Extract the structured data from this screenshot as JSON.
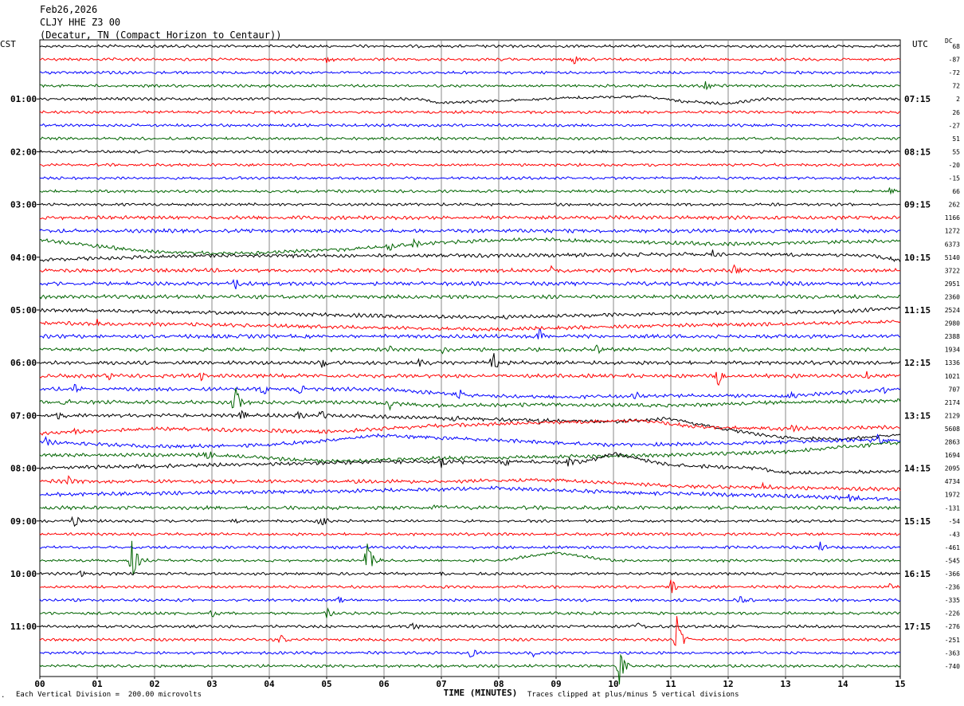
{
  "header": {
    "date": "Feb26,2026",
    "station": "CLJY HHE Z3 00",
    "location": "(Decatur, TN (Compact Horizon to Centaur))"
  },
  "axis": {
    "left_label": "CST",
    "right_label": "UTC",
    "dc_label": "DC",
    "xlabel": "TIME (MINUTES)",
    "x_ticks": [
      "00",
      "01",
      "02",
      "03",
      "04",
      "05",
      "06",
      "07",
      "08",
      "09",
      "10",
      "11",
      "12",
      "13",
      "14",
      "15"
    ]
  },
  "footer": {
    "scale_note": "Each Vertical Division =  200.00 microvolts",
    "clip_note": "Traces clipped at plus/minus 5 vertical divisions",
    "corner_mark": "."
  },
  "chart_data": {
    "type": "line",
    "title": "",
    "xlabel": "TIME (MINUTES)",
    "xlim": [
      0,
      15
    ],
    "trace_colors": [
      "#000000",
      "#ff0000",
      "#0000ff",
      "#006400"
    ],
    "left_times": [
      {
        "trace": 4,
        "label": "01:00"
      },
      {
        "trace": 8,
        "label": "02:00"
      },
      {
        "trace": 12,
        "label": "03:00"
      },
      {
        "trace": 16,
        "label": "04:00"
      },
      {
        "trace": 20,
        "label": "05:00"
      },
      {
        "trace": 24,
        "label": "06:00"
      },
      {
        "trace": 28,
        "label": "07:00"
      },
      {
        "trace": 32,
        "label": "08:00"
      },
      {
        "trace": 36,
        "label": "09:00"
      },
      {
        "trace": 40,
        "label": "10:00"
      },
      {
        "trace": 44,
        "label": "11:00"
      }
    ],
    "right_times": [
      {
        "trace": 4,
        "label": "07:15"
      },
      {
        "trace": 8,
        "label": "08:15"
      },
      {
        "trace": 12,
        "label": "09:15"
      },
      {
        "trace": 16,
        "label": "10:15"
      },
      {
        "trace": 20,
        "label": "11:15"
      },
      {
        "trace": 24,
        "label": "12:15"
      },
      {
        "trace": 28,
        "label": "13:15"
      },
      {
        "trace": 32,
        "label": "14:15"
      },
      {
        "trace": 36,
        "label": "15:15"
      },
      {
        "trace": 40,
        "label": "16:15"
      },
      {
        "trace": 44,
        "label": "17:15"
      }
    ],
    "dc_offsets": [
      "68",
      "-87",
      "-72",
      "72",
      "2",
      "26",
      "-27",
      "51",
      "55",
      "-20",
      "-15",
      "66",
      "262",
      "1166",
      "1272",
      "6373",
      "5140",
      "3722",
      "2951",
      "2360",
      "2524",
      "2980",
      "2388",
      "1934",
      "1336",
      "1021",
      "707",
      "2174",
      "2129",
      "5608",
      "2863",
      "1694",
      "2095",
      "4734",
      "1972",
      "-131",
      "-54",
      "-43",
      "-461",
      "-545",
      "-366",
      "-236",
      "-335",
      "-226",
      "-276",
      "-251",
      "-363",
      "-740"
    ],
    "events": [
      {
        "trace": 1,
        "minute": 5.0,
        "amp": 5
      },
      {
        "trace": 1,
        "minute": 9.3,
        "amp": 8
      },
      {
        "trace": 3,
        "minute": 11.6,
        "amp": 8
      },
      {
        "trace": 11,
        "minute": 14.8,
        "amp": 5
      },
      {
        "trace": 15,
        "minute": 6.1,
        "amp": 7
      },
      {
        "trace": 15,
        "minute": 6.5,
        "amp": 7
      },
      {
        "trace": 16,
        "minute": 11.7,
        "amp": 5
      },
      {
        "trace": 17,
        "minute": 8.9,
        "amp": 6
      },
      {
        "trace": 17,
        "minute": 12.1,
        "amp": 8
      },
      {
        "trace": 18,
        "minute": 3.4,
        "amp": 7
      },
      {
        "trace": 21,
        "minute": 1.0,
        "amp": 5
      },
      {
        "trace": 22,
        "minute": 8.7,
        "amp": 10
      },
      {
        "trace": 23,
        "minute": 6.1,
        "amp": 4
      },
      {
        "trace": 23,
        "minute": 7.0,
        "amp": 4
      },
      {
        "trace": 23,
        "minute": 9.7,
        "amp": 6
      },
      {
        "trace": 24,
        "minute": 4.9,
        "amp": 10
      },
      {
        "trace": 24,
        "minute": 6.6,
        "amp": 5
      },
      {
        "trace": 24,
        "minute": 7.9,
        "amp": 16
      },
      {
        "trace": 25,
        "minute": 1.2,
        "amp": 8
      },
      {
        "trace": 25,
        "minute": 2.8,
        "amp": 5
      },
      {
        "trace": 25,
        "minute": 11.8,
        "amp": 16
      },
      {
        "trace": 25,
        "minute": 14.4,
        "amp": 5
      },
      {
        "trace": 26,
        "minute": 0.6,
        "amp": 5
      },
      {
        "trace": 26,
        "minute": 3.9,
        "amp": 10
      },
      {
        "trace": 26,
        "minute": 4.5,
        "amp": 8
      },
      {
        "trace": 26,
        "minute": 7.3,
        "amp": 10
      },
      {
        "trace": 26,
        "minute": 10.4,
        "amp": 5
      },
      {
        "trace": 26,
        "minute": 13.1,
        "amp": 5
      },
      {
        "trace": 26,
        "minute": 14.7,
        "amp": 6
      },
      {
        "trace": 27,
        "minute": 0.4,
        "amp": 6
      },
      {
        "trace": 27,
        "minute": 3.4,
        "amp": 24
      },
      {
        "trace": 27,
        "minute": 6.1,
        "amp": 7
      },
      {
        "trace": 27,
        "minute": 8.4,
        "amp": 6
      },
      {
        "trace": 28,
        "minute": 0.3,
        "amp": 5
      },
      {
        "trace": 28,
        "minute": 3.5,
        "amp": 9
      },
      {
        "trace": 28,
        "minute": 4.5,
        "amp": 7
      },
      {
        "trace": 28,
        "minute": 4.9,
        "amp": 7
      },
      {
        "trace": 28,
        "minute": 7.2,
        "amp": 6
      },
      {
        "trace": 28,
        "minute": 8.7,
        "amp": 5
      },
      {
        "trace": 29,
        "minute": 0.6,
        "amp": 6
      },
      {
        "trace": 29,
        "minute": 13.1,
        "amp": 6
      },
      {
        "trace": 30,
        "minute": 0.1,
        "amp": 6
      },
      {
        "trace": 30,
        "minute": 14.6,
        "amp": 7
      },
      {
        "trace": 31,
        "minute": 2.9,
        "amp": 8
      },
      {
        "trace": 32,
        "minute": 7.0,
        "amp": 9
      },
      {
        "trace": 32,
        "minute": 8.1,
        "amp": 5
      },
      {
        "trace": 32,
        "minute": 9.2,
        "amp": 8
      },
      {
        "trace": 33,
        "minute": 0.5,
        "amp": 6
      },
      {
        "trace": 33,
        "minute": 12.6,
        "amp": 6
      },
      {
        "trace": 34,
        "minute": 14.1,
        "amp": 5
      },
      {
        "trace": 35,
        "minute": 6.9,
        "amp": 5
      },
      {
        "trace": 36,
        "minute": 0.6,
        "amp": 10
      },
      {
        "trace": 36,
        "minute": 3.4,
        "amp": 5
      },
      {
        "trace": 36,
        "minute": 4.9,
        "amp": 10
      },
      {
        "trace": 38,
        "minute": 13.6,
        "amp": 7
      },
      {
        "trace": 39,
        "minute": 1.6,
        "amp": 34
      },
      {
        "trace": 39,
        "minute": 5.7,
        "amp": 30
      },
      {
        "trace": 40,
        "minute": 0.7,
        "amp": 4
      },
      {
        "trace": 40,
        "minute": 7.0,
        "amp": 4
      },
      {
        "trace": 41,
        "minute": 11.0,
        "amp": 10
      },
      {
        "trace": 41,
        "minute": 14.8,
        "amp": 6
      },
      {
        "trace": 42,
        "minute": 5.2,
        "amp": 6
      },
      {
        "trace": 42,
        "minute": 12.2,
        "amp": 7
      },
      {
        "trace": 43,
        "minute": 3.0,
        "amp": 5
      },
      {
        "trace": 43,
        "minute": 5.0,
        "amp": 7
      },
      {
        "trace": 44,
        "minute": 6.5,
        "amp": 5
      },
      {
        "trace": 44,
        "minute": 10.4,
        "amp": 5
      },
      {
        "trace": 45,
        "minute": 4.2,
        "amp": 6
      },
      {
        "trace": 45,
        "minute": 11.1,
        "amp": 30
      },
      {
        "trace": 46,
        "minute": 7.5,
        "amp": 8
      },
      {
        "trace": 46,
        "minute": 8.6,
        "amp": 5
      },
      {
        "trace": 47,
        "minute": 10.1,
        "amp": 30
      }
    ]
  }
}
